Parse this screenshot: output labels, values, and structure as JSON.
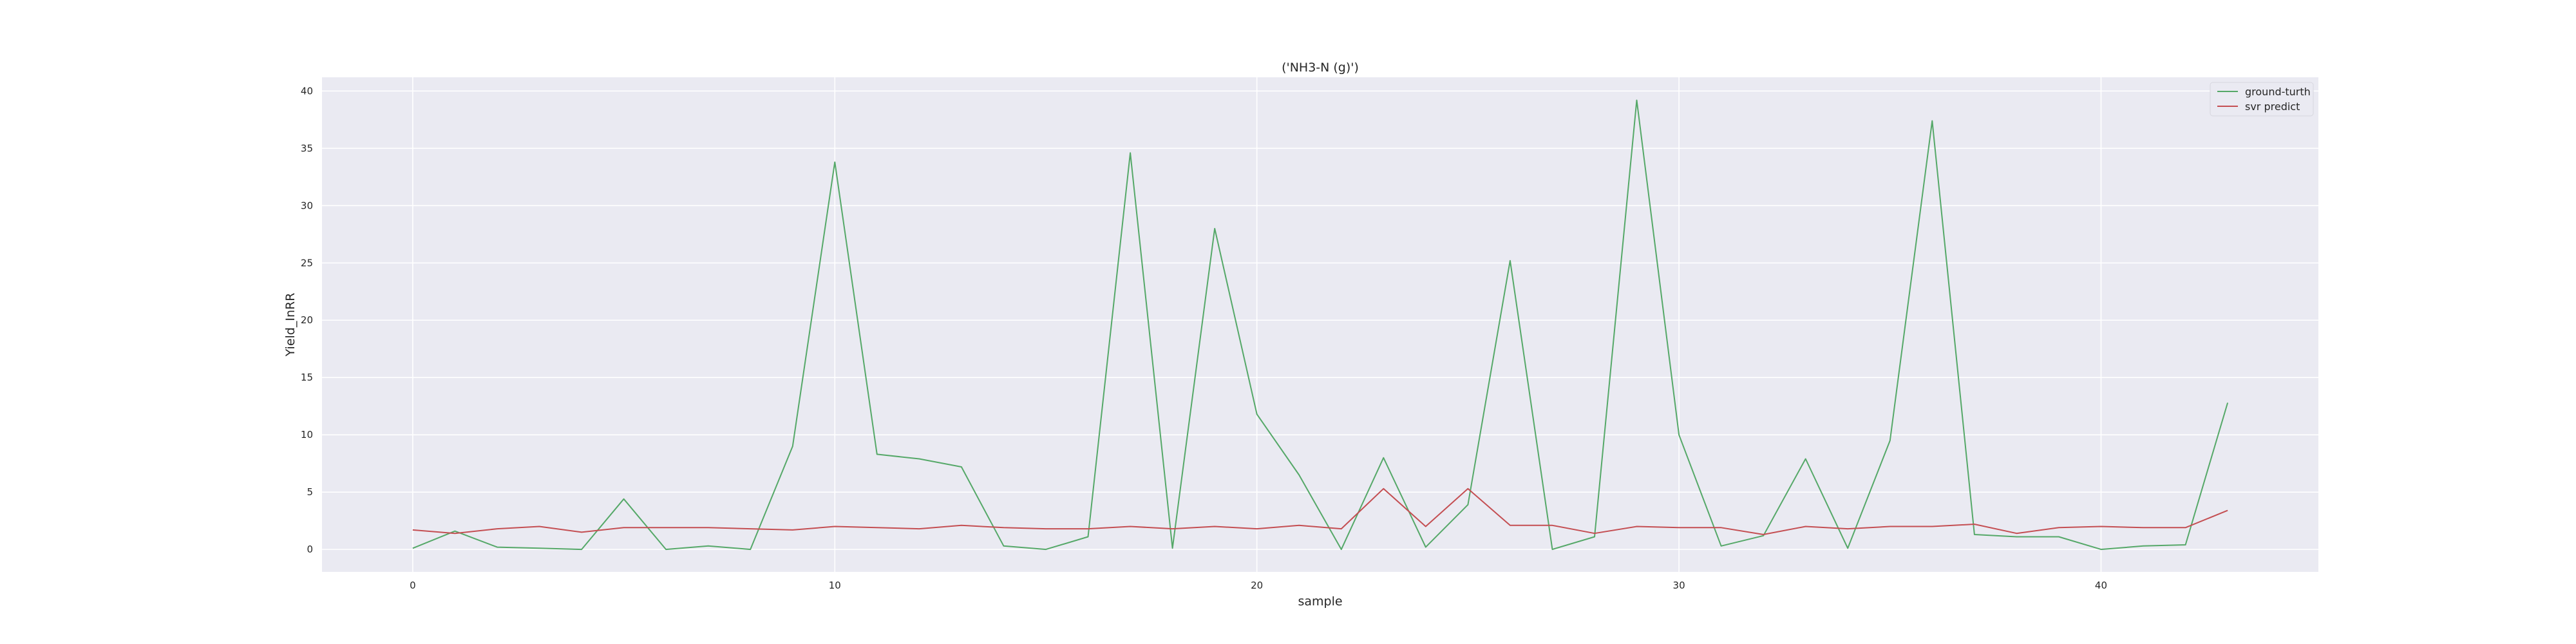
{
  "chart_data": {
    "type": "line",
    "title": "('NH3-N (g)')",
    "xlabel": "sample",
    "ylabel": "Yield_InRR",
    "xlim": [
      -2.15,
      45.15
    ],
    "ylim": [
      -1.96,
      41.2
    ],
    "x_ticks": [
      0,
      10,
      20,
      30,
      40
    ],
    "y_ticks": [
      0,
      5,
      10,
      15,
      20,
      25,
      30,
      35,
      40
    ],
    "grid": true,
    "legend_position": "top-right",
    "x": [
      0,
      1,
      2,
      3,
      4,
      5,
      6,
      7,
      8,
      9,
      10,
      11,
      12,
      13,
      14,
      15,
      16,
      17,
      18,
      19,
      20,
      21,
      22,
      23,
      24,
      25,
      26,
      27,
      28,
      29,
      30,
      31,
      32,
      33,
      34,
      35,
      36,
      37,
      38,
      39,
      40,
      41,
      42,
      43
    ],
    "series": [
      {
        "name": "ground-turth",
        "color": "#55a868",
        "values": [
          0.1,
          1.6,
          0.2,
          0.1,
          0.0,
          4.4,
          0.0,
          0.3,
          0.0,
          9.0,
          33.8,
          8.3,
          7.9,
          7.2,
          0.3,
          0.0,
          1.1,
          34.6,
          0.1,
          28.0,
          11.8,
          6.5,
          0.0,
          8.0,
          0.2,
          3.9,
          25.2,
          0.0,
          1.1,
          39.2,
          10.0,
          0.3,
          1.2,
          7.9,
          0.1,
          9.5,
          37.4,
          1.3,
          1.1,
          1.1,
          0.0,
          0.3,
          0.4,
          12.8
        ]
      },
      {
        "name": "svr predict",
        "color": "#c44e52",
        "values": [
          1.7,
          1.4,
          1.8,
          2.0,
          1.5,
          1.9,
          1.9,
          1.9,
          1.8,
          1.7,
          2.0,
          1.9,
          1.8,
          2.1,
          1.9,
          1.8,
          1.8,
          2.0,
          1.8,
          2.0,
          1.8,
          2.1,
          1.8,
          5.3,
          2.0,
          5.3,
          2.1,
          2.1,
          1.4,
          2.0,
          1.9,
          1.9,
          1.3,
          2.0,
          1.8,
          2.0,
          2.0,
          2.2,
          1.4,
          1.9,
          2.0,
          1.9,
          1.9,
          3.4
        ]
      }
    ]
  }
}
